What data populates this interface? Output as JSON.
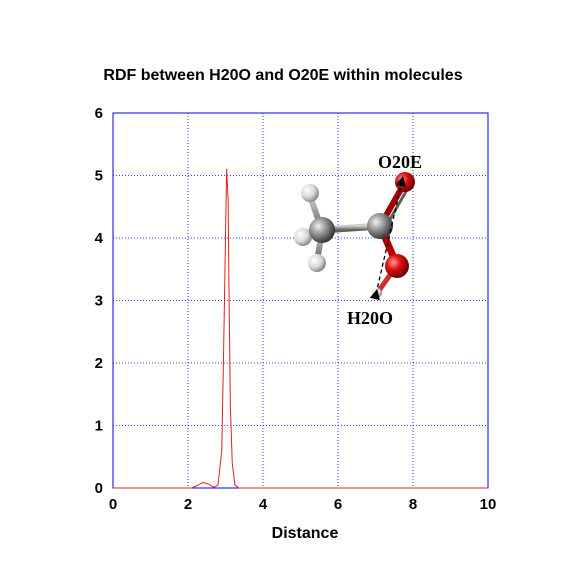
{
  "chart_data": {
    "type": "line",
    "title": "RDF between H20O and O20E within molecules",
    "xlabel": "Distance",
    "ylabel": "",
    "xlim": [
      0,
      10
    ],
    "ylim": [
      0,
      6
    ],
    "xticks": [
      "0",
      "2",
      "4",
      "6",
      "8",
      "10"
    ],
    "yticks": [
      "0",
      "1",
      "2",
      "3",
      "4",
      "5",
      "6"
    ],
    "grid": true,
    "series": [
      {
        "color": "#e02020",
        "x": [
          0,
          1.9,
          2.1,
          2.25,
          2.4,
          2.55,
          2.7,
          2.8,
          2.9,
          2.95,
          3.0,
          3.03,
          3.07,
          3.1,
          3.13,
          3.18,
          3.25,
          3.35,
          5.0,
          10
        ],
        "y": [
          0,
          0,
          0,
          0.04,
          0.09,
          0.06,
          0.01,
          0.05,
          0.6,
          2.2,
          4.0,
          5.1,
          4.6,
          2.8,
          1.3,
          0.4,
          0.05,
          0,
          0,
          0
        ]
      }
    ],
    "annotations": [
      {
        "text": "O20E"
      },
      {
        "text": "H20O"
      }
    ]
  },
  "molecule": {
    "atoms": [
      {
        "element": "H",
        "color": "#dcdcdc"
      },
      {
        "element": "H",
        "color": "#dcdcdc"
      },
      {
        "element": "H",
        "color": "#dcdcdc"
      },
      {
        "element": "H",
        "color": "#dcdcdc"
      },
      {
        "element": "C",
        "color": "#8a8a8a"
      },
      {
        "element": "C",
        "color": "#8a8a8a"
      },
      {
        "element": "O",
        "color": "#e01010"
      },
      {
        "element": "O",
        "color": "#e01010"
      }
    ]
  }
}
